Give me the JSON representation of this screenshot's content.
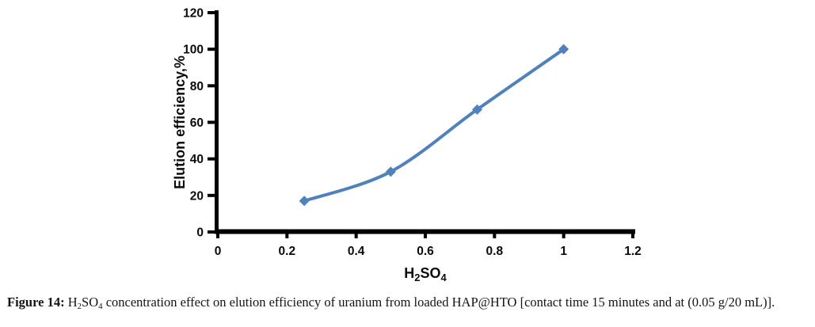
{
  "figure": {
    "caption": {
      "label": "Figure 14: ",
      "formula": {
        "h": "H",
        "two": "2",
        "so": "SO",
        "four": "4"
      },
      "text": " concentration effect on elution efficiency of uranium from loaded HAP@HTO [contact time 15 minutes and at (0.05 g/20 mL)]."
    }
  },
  "chart_data": {
    "type": "line",
    "title": "",
    "x": [
      0.25,
      0.5,
      0.75,
      1
    ],
    "series": [
      {
        "name": "Elution efficiency",
        "values": [
          17,
          33,
          67,
          100
        ],
        "color": "#4f81bd",
        "marker": "diamond",
        "smooth": true
      }
    ],
    "xlabel": "H2SO4",
    "xlabel_segments": [
      {
        "t": "H",
        "sub": false
      },
      {
        "t": "2",
        "sub": true
      },
      {
        "t": "SO",
        "sub": false
      },
      {
        "t": "4",
        "sub": true
      }
    ],
    "ylabel": "Elution efficiency,%",
    "xlim": [
      0,
      1.2
    ],
    "ylim": [
      0,
      120
    ],
    "xticks": [
      0,
      0.2,
      0.4,
      0.6,
      0.8,
      1,
      1.2
    ],
    "yticks": [
      0,
      20,
      40,
      60,
      80,
      100,
      120
    ],
    "grid": false,
    "legend": "none",
    "axis_color": "#000000",
    "text_color": "#0b0b0b"
  }
}
